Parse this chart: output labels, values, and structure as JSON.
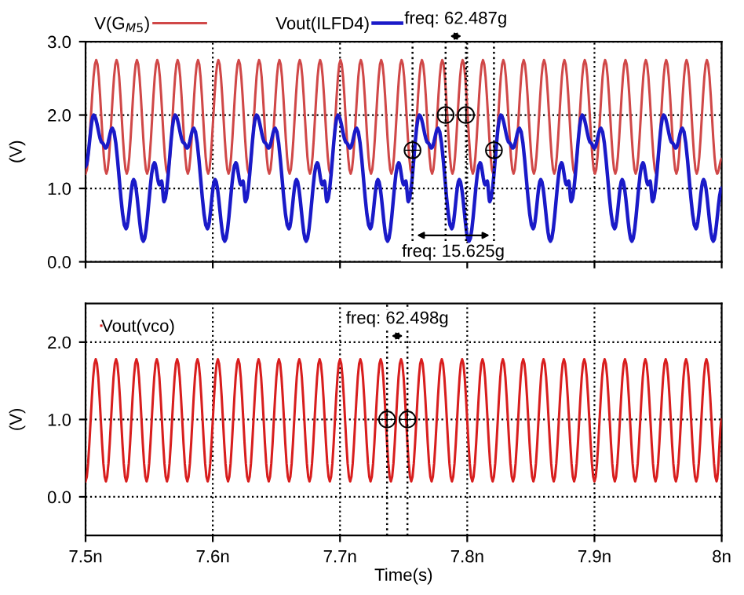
{
  "chart_data": [
    {
      "type": "line",
      "ylabel": "(V)",
      "legend": "top",
      "grid": true,
      "tick_labels": "y",
      "xlim": [
        7.5,
        8.0
      ],
      "ylim": [
        0,
        3.0
      ],
      "xticks": [
        {
          "value": 7.5,
          "label": null
        },
        {
          "value": 7.6,
          "label": null
        },
        {
          "value": 7.7,
          "label": null
        },
        {
          "value": 7.8,
          "label": null
        },
        {
          "value": 7.9,
          "label": null
        },
        {
          "value": 8.0,
          "label": null
        }
      ],
      "yticks": [
        {
          "value": 0,
          "label": "0.0"
        },
        {
          "value": 1,
          "label": "1.0"
        },
        {
          "value": 2,
          "label": "2.0"
        },
        {
          "value": 3,
          "label": "3.0"
        }
      ],
      "series": [
        {
          "name": "V(G$_{M5}$)",
          "color": "#d04848",
          "x": [
            7.5,
            7.5084,
            7.5164,
            7.5244,
            7.5324,
            7.5404,
            7.5484,
            7.5564,
            7.5644,
            7.5724,
            7.5804,
            7.5884,
            7.5964,
            7.6044,
            7.6124,
            7.6204,
            7.6284,
            7.6364,
            7.6444,
            7.6524,
            7.6604,
            7.6684,
            7.6764,
            7.6844,
            7.6924,
            7.7004,
            7.7084,
            7.7164,
            7.7244,
            7.7324,
            7.7404,
            7.7484,
            7.7564,
            7.7644,
            7.7724,
            7.7804,
            7.7884,
            7.7964,
            7.8044,
            7.8124,
            7.8204,
            7.8284,
            7.8364,
            7.8444,
            7.8524,
            7.8604,
            7.8684,
            7.8764,
            7.8844,
            7.8924,
            7.9004,
            7.9084,
            7.9164,
            7.9244,
            7.9324,
            7.9404,
            7.9484,
            7.9564,
            7.9644,
            7.9724,
            7.9804,
            7.9884,
            7.9964,
            8.0
          ],
          "values": [
            1.2,
            2.75,
            1.2,
            2.75,
            1.2,
            2.75,
            1.2,
            2.75,
            1.2,
            2.75,
            1.2,
            2.75,
            1.2,
            2.75,
            1.2,
            2.75,
            1.2,
            2.75,
            1.2,
            2.75,
            1.2,
            2.75,
            1.2,
            2.75,
            1.2,
            2.75,
            1.2,
            2.75,
            1.2,
            2.75,
            1.2,
            2.75,
            1.2,
            2.75,
            1.2,
            2.75,
            1.2,
            2.75,
            1.2,
            2.75,
            1.2,
            2.75,
            1.2,
            2.75,
            1.2,
            2.75,
            1.2,
            2.75,
            1.2,
            2.75,
            1.2,
            2.75,
            1.2,
            2.75,
            1.2,
            2.75,
            1.2,
            2.75,
            1.2,
            2.75,
            1.2,
            2.75,
            1.2,
            1.4
          ]
        },
        {
          "name": "Vout(ILFD4)",
          "color": "#1a1ac8",
          "x": [
            7.5,
            7.5064,
            7.5132,
            7.5159,
            7.5211,
            7.5318,
            7.5378,
            7.5454,
            7.5541,
            7.5581,
            7.5597,
            7.5617,
            7.5704,
            7.5772,
            7.5799,
            7.5851,
            7.5958,
            7.6018,
            7.6094,
            7.6181,
            7.6221,
            7.6237,
            7.6257,
            7.6344,
            7.6412,
            7.6439,
            7.6491,
            7.6598,
            7.6658,
            7.6734,
            7.6821,
            7.6861,
            7.6877,
            7.6897,
            7.6984,
            7.7052,
            7.7079,
            7.7131,
            7.7238,
            7.7298,
            7.7374,
            7.7461,
            7.7501,
            7.7517,
            7.7537,
            7.7624,
            7.7692,
            7.7719,
            7.7771,
            7.7878,
            7.7938,
            7.8014,
            7.8101,
            7.8141,
            7.8157,
            7.8177,
            7.8264,
            7.8332,
            7.8359,
            7.8411,
            7.8518,
            7.8578,
            7.8654,
            7.8741,
            7.8781,
            7.8797,
            7.8817,
            7.8904,
            7.8972,
            7.8999,
            7.9051,
            7.9158,
            7.9218,
            7.9294,
            7.9381,
            7.9421,
            7.9437,
            7.9457,
            7.9544,
            7.9612,
            7.9639,
            7.9691,
            7.9798,
            7.9858,
            7.9934,
            8.0
          ],
          "values": [
            1.3,
            2.0,
            1.62,
            1.55,
            1.82,
            0.45,
            1.12,
            0.28,
            1.35,
            1.05,
            1.1,
            0.82,
            2.0,
            1.62,
            1.55,
            1.82,
            0.45,
            1.12,
            0.28,
            1.35,
            1.05,
            1.1,
            0.82,
            2.0,
            1.62,
            1.55,
            1.82,
            0.45,
            1.12,
            0.28,
            1.35,
            1.05,
            1.1,
            0.82,
            2.0,
            1.62,
            1.55,
            1.82,
            0.45,
            1.12,
            0.28,
            1.35,
            1.05,
            1.1,
            0.82,
            2.0,
            1.62,
            1.55,
            1.82,
            0.45,
            1.12,
            0.28,
            1.35,
            1.05,
            1.1,
            0.82,
            2.0,
            1.62,
            1.55,
            1.82,
            0.45,
            1.12,
            0.28,
            1.35,
            1.05,
            1.1,
            0.82,
            2.0,
            1.62,
            1.55,
            1.82,
            0.45,
            1.12,
            0.28,
            1.35,
            1.05,
            1.1,
            0.82,
            2.0,
            1.62,
            1.55,
            1.82,
            0.45,
            1.12,
            0.28,
            1.0
          ]
        },
        {
          "type": "scatter",
          "color": "#000000",
          "marker": "circle",
          "x": [
            7.783,
            7.799,
            7.757,
            7.821
          ],
          "values": [
            2.0,
            2.0,
            1.52,
            1.52
          ]
        }
      ],
      "ref_lines": [
        {
          "axis": "x",
          "value": 7.783,
          "color": "#000000",
          "line_style": "dotted"
        },
        {
          "axis": "x",
          "value": 7.799,
          "color": "#000000",
          "line_style": "dotted"
        },
        {
          "axis": "x",
          "value": 7.757,
          "color": "#000000",
          "line_style": "dotted"
        },
        {
          "axis": "x",
          "value": 7.821,
          "color": "#000000",
          "line_style": "dotted"
        }
      ],
      "annotations": [
        "freq: 62.487g",
        "freq: 15.625g"
      ]
    },
    {
      "type": "line",
      "xlabel": "Time(s)",
      "ylabel": "(V)",
      "legend": "top left",
      "grid": true,
      "xlim": [
        7.5,
        8.0
      ],
      "ylim": [
        -0.5,
        2.5
      ],
      "xticks": [
        {
          "value": 7.5,
          "label": "7.5n"
        },
        {
          "value": 7.6,
          "label": "7.6n"
        },
        {
          "value": 7.7,
          "label": "7.7n"
        },
        {
          "value": 7.8,
          "label": "7.8n"
        },
        {
          "value": 7.9,
          "label": "7.9n"
        },
        {
          "value": 8.0,
          "label": "8n"
        }
      ],
      "yticks": [
        {
          "value": 0,
          "label": "0.0"
        },
        {
          "value": 1,
          "label": "1.0"
        },
        {
          "value": 2,
          "label": "2.0"
        }
      ],
      "series": [
        {
          "name": "Vout(vco)",
          "color": "#d81e1e",
          "x": [
            7.5,
            7.508,
            7.516,
            7.524,
            7.532,
            7.54,
            7.548,
            7.556,
            7.564,
            7.572,
            7.58,
            7.588,
            7.596,
            7.604,
            7.612,
            7.62,
            7.628,
            7.636,
            7.644,
            7.652,
            7.66,
            7.668,
            7.676,
            7.684,
            7.692,
            7.7,
            7.708,
            7.716,
            7.724,
            7.732,
            7.74,
            7.748,
            7.756,
            7.764,
            7.772,
            7.78,
            7.788,
            7.796,
            7.804,
            7.812,
            7.82,
            7.828,
            7.836,
            7.844,
            7.852,
            7.86,
            7.868,
            7.876,
            7.884,
            7.892,
            7.9,
            7.908,
            7.916,
            7.924,
            7.932,
            7.94,
            7.948,
            7.956,
            7.964,
            7.972,
            7.98,
            7.988,
            7.996,
            8.0
          ],
          "values": [
            0.2,
            1.78,
            0.2,
            1.78,
            0.2,
            1.78,
            0.2,
            1.78,
            0.2,
            1.78,
            0.2,
            1.78,
            0.2,
            1.78,
            0.2,
            1.78,
            0.2,
            1.78,
            0.2,
            1.78,
            0.2,
            1.78,
            0.2,
            1.78,
            0.2,
            1.78,
            0.2,
            1.78,
            0.2,
            1.78,
            0.2,
            1.78,
            0.2,
            1.78,
            0.2,
            1.78,
            0.2,
            1.78,
            0.2,
            1.78,
            0.2,
            1.78,
            0.2,
            1.78,
            0.2,
            1.78,
            0.2,
            1.78,
            0.2,
            1.78,
            0.2,
            1.78,
            0.2,
            1.78,
            0.2,
            1.78,
            0.2,
            1.78,
            0.2,
            1.78,
            0.2,
            1.78,
            0.2,
            1.0
          ]
        },
        {
          "type": "scatter",
          "color": "#000000",
          "marker": "circle",
          "x": [
            7.737,
            7.753
          ],
          "values": [
            1.0,
            1.0
          ]
        }
      ],
      "ref_lines": [
        {
          "axis": "x",
          "value": 7.737,
          "color": "#000000",
          "line_style": "dotted"
        },
        {
          "axis": "x",
          "value": 7.753,
          "color": "#000000",
          "line_style": "dotted"
        }
      ],
      "annotations": [
        "freq: 62.498g"
      ]
    }
  ]
}
